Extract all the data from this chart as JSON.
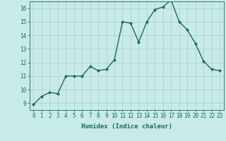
{
  "x": [
    0,
    1,
    2,
    3,
    4,
    5,
    6,
    7,
    8,
    9,
    10,
    11,
    12,
    13,
    14,
    15,
    16,
    17,
    18,
    19,
    20,
    21,
    22,
    23
  ],
  "y": [
    8.9,
    9.5,
    9.8,
    9.7,
    11.0,
    11.0,
    11.0,
    11.7,
    11.4,
    11.5,
    12.2,
    15.0,
    14.9,
    13.5,
    15.0,
    15.9,
    16.1,
    16.6,
    15.0,
    14.4,
    13.4,
    12.1,
    11.5,
    11.4
  ],
  "line_color": "#1a6b5a",
  "marker": "D",
  "markersize": 2.2,
  "bg_color": "#c8eae8",
  "grid_color": "#afd4d0",
  "xlabel": "Humidex (Indice chaleur)",
  "xlim": [
    -0.5,
    23.5
  ],
  "ylim": [
    8.5,
    16.5
  ],
  "yticks": [
    9,
    10,
    11,
    12,
    13,
    14,
    15,
    16
  ],
  "xticks": [
    0,
    1,
    2,
    3,
    4,
    5,
    6,
    7,
    8,
    9,
    10,
    11,
    12,
    13,
    14,
    15,
    16,
    17,
    18,
    19,
    20,
    21,
    22,
    23
  ],
  "tick_color": "#1a6b5a",
  "label_fontsize": 6.5,
  "tick_fontsize": 5.5,
  "linewidth": 1.0
}
